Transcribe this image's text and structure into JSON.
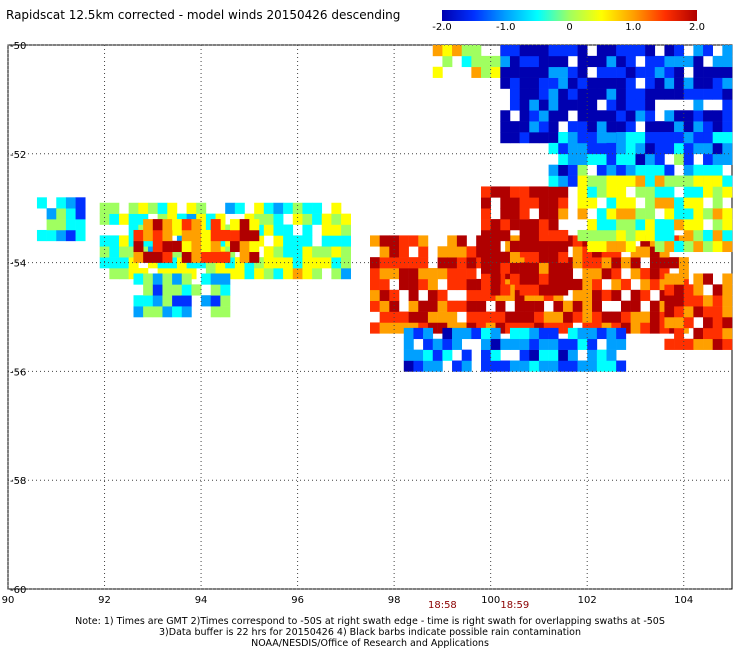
{
  "title": "Rapidscat 12.5km corrected - model winds 20150426 descending",
  "colorbar": {
    "colors": [
      "#0000b0",
      "#0030ff",
      "#00a0ff",
      "#00ffff",
      "#a0ff60",
      "#ffff00",
      "#ffa000",
      "#ff3000",
      "#b00000"
    ],
    "ticks": [
      "-2.0",
      "-1.0",
      "0",
      "1.0",
      "2.0"
    ],
    "range": [
      -2.0,
      2.0
    ]
  },
  "chart_data": {
    "type": "heatmap",
    "title": "Rapidscat 12.5km corrected - model winds 20150426 descending",
    "xlim": [
      90,
      105
    ],
    "ylim": [
      -60,
      -50
    ],
    "xticks": [
      "90",
      "92",
      "94",
      "96",
      "98",
      "100",
      "102",
      "104"
    ],
    "yticks": [
      "-50",
      "-52",
      "-54",
      "-56",
      "-58",
      "-60"
    ],
    "grid": true,
    "cell_size_deg": [
      0.2,
      0.2
    ],
    "value_range": [
      -2.0,
      2.0
    ],
    "regions": [
      {
        "lon": [
          97.5,
          104.0
        ],
        "lat": [
          -55.3,
          -53.6
        ],
        "value": 1.6
      },
      {
        "lon": [
          99.8,
          101.6
        ],
        "lat": [
          -54.6,
          -52.7
        ],
        "value": 2.0
      },
      {
        "lon": [
          91.9,
          97.0
        ],
        "lat": [
          -54.3,
          -53.0
        ],
        "value": 0.0
      },
      {
        "lon": [
          92.6,
          95.1
        ],
        "lat": [
          -54.0,
          -53.2
        ],
        "value": 1.4
      },
      {
        "lon": [
          98.8,
          101.2
        ],
        "lat": [
          -50.6,
          -50.0
        ],
        "value": 0.3
      },
      {
        "lon": [
          100.2,
          105.0
        ],
        "lat": [
          -51.8,
          -50.0
        ],
        "value": -1.8
      },
      {
        "lon": [
          101.2,
          105.0
        ],
        "lat": [
          -52.6,
          -51.6
        ],
        "value": -1.0
      },
      {
        "lon": [
          101.8,
          105.0
        ],
        "lat": [
          -53.8,
          -52.4
        ],
        "value": 0.2
      },
      {
        "lon": [
          103.6,
          105.0
        ],
        "lat": [
          -55.6,
          -54.2
        ],
        "value": 1.4
      },
      {
        "lon": [
          98.2,
          102.8
        ],
        "lat": [
          -56.0,
          -55.2
        ],
        "value": -1.2
      },
      {
        "lon": [
          90.6,
          91.6
        ],
        "lat": [
          -53.6,
          -52.8
        ],
        "value": -0.8
      },
      {
        "lon": [
          92.6,
          94.6
        ],
        "lat": [
          -55.0,
          -54.3
        ],
        "value": -0.6
      }
    ]
  },
  "time_labels": [
    "18:58",
    "18:59"
  ],
  "notes": [
    "Note: 1) Times are GMT 2)Times correspond to -50S at right swath edge - time is right swath for overlapping swaths at -50S",
    "3)Data buffer is 22 hrs for 20150426 4) Black barbs indicate possible rain contamination",
    "NOAA/NESDIS/Office of Research and Applications"
  ]
}
